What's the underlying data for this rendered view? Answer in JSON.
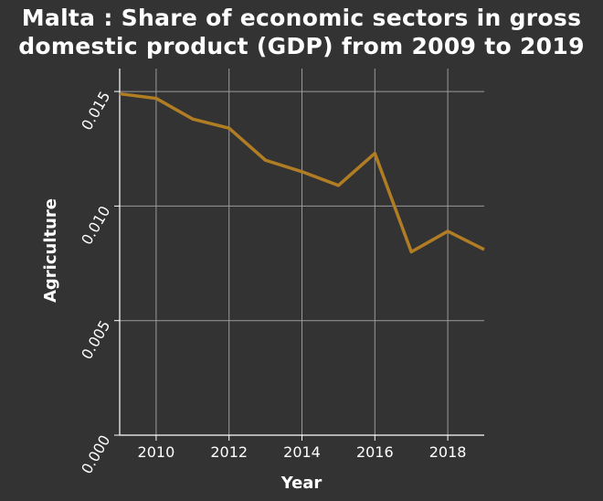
{
  "chart_data": {
    "type": "line",
    "title_lines": [
      "Malta : Share of economic sectors in gross",
      "domestic product (GDP) from 2009 to 2019"
    ],
    "xlabel": "Year",
    "ylabel": "Agriculture",
    "xlim": [
      2009,
      2019
    ],
    "ylim": [
      0,
      0.016
    ],
    "xticks": [
      2010,
      2012,
      2014,
      2016,
      2018
    ],
    "xtick_labels": [
      "2010",
      "2012",
      "2014",
      "2016",
      "2018"
    ],
    "yticks": [
      0,
      0.005,
      0.01,
      0.015
    ],
    "ytick_labels": [
      "0.000",
      "0.005",
      "0.010",
      "0.015"
    ],
    "grid": true,
    "series": [
      {
        "x": [
          2009,
          2010,
          2011,
          2012,
          2013,
          2014,
          2015,
          2016,
          2017,
          2018,
          2019
        ],
        "values": [
          0.0149,
          0.0147,
          0.0138,
          0.0134,
          0.012,
          0.0115,
          0.0109,
          0.0123,
          0.008,
          0.0089,
          0.0081
        ],
        "color": "#b07d24"
      }
    ],
    "colors": {
      "background": "#333333",
      "grid": "#9a9a9a",
      "axis": "#ffffff",
      "line": "#b07d24"
    }
  }
}
